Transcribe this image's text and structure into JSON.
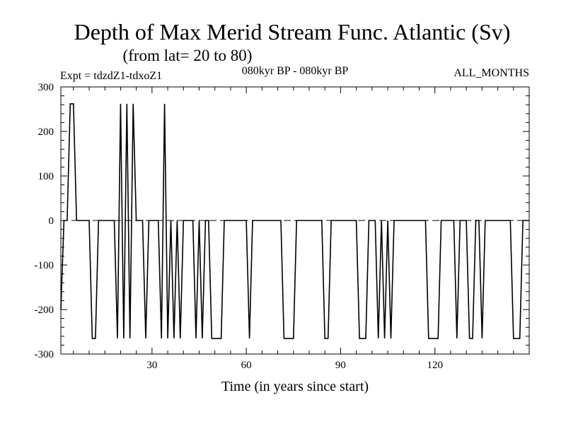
{
  "chart_data": {
    "type": "line",
    "title": "Depth of Max Merid Stream Func. Atlantic (Sv)",
    "subtitle": "(from lat= 20 to 80)",
    "expt_label": "Expt = tdzdZ1-tdxoZ1",
    "period_label": "080kyr BP - 080kyr BP",
    "months_label": "ALL_MONTHS",
    "xlabel": "Time (in years since start)",
    "ylabel": "",
    "xlim": [
      1,
      150
    ],
    "ylim": [
      -300,
      300
    ],
    "xticks": [
      30,
      60,
      90,
      120
    ],
    "yticks": [
      -300,
      -200,
      -100,
      0,
      100,
      200,
      300
    ],
    "zero_line": "dashed",
    "series": [
      {
        "name": "",
        "x": [
          1,
          2,
          3,
          4,
          5,
          6,
          7,
          8,
          9,
          10,
          11,
          12,
          13,
          14,
          15,
          16,
          17,
          18,
          19,
          20,
          21,
          22,
          23,
          24,
          25,
          26,
          27,
          28,
          29,
          30,
          31,
          32,
          33,
          34,
          35,
          36,
          37,
          38,
          39,
          40,
          41,
          42,
          43,
          44,
          45,
          46,
          47,
          48,
          49,
          50,
          51,
          52,
          53,
          54,
          55,
          56,
          57,
          58,
          59,
          60,
          61,
          62,
          63,
          64,
          65,
          66,
          67,
          68,
          69,
          70,
          71,
          72,
          73,
          74,
          75,
          76,
          77,
          78,
          79,
          80,
          81,
          82,
          83,
          84,
          85,
          86,
          87,
          88,
          89,
          90,
          91,
          92,
          93,
          94,
          95,
          96,
          97,
          98,
          99,
          100,
          101,
          102,
          103,
          104,
          105,
          106,
          107,
          108,
          109,
          110,
          111,
          112,
          113,
          114,
          115,
          116,
          117,
          118,
          119,
          120,
          121,
          122,
          123,
          124,
          125,
          126,
          127,
          128,
          129,
          130,
          131,
          132,
          133,
          134,
          135,
          136,
          137,
          138,
          139,
          140,
          141,
          142,
          143,
          144,
          145,
          146,
          147,
          148,
          149,
          150
        ],
        "values": [
          -200,
          0,
          0,
          262,
          262,
          0,
          0,
          0,
          0,
          0,
          -265,
          -265,
          0,
          0,
          0,
          0,
          0,
          0,
          -265,
          262,
          -265,
          262,
          -265,
          262,
          0,
          0,
          0,
          -265,
          0,
          0,
          0,
          0,
          -265,
          262,
          -265,
          0,
          -265,
          0,
          -265,
          0,
          0,
          0,
          0,
          -265,
          0,
          -265,
          0,
          0,
          -265,
          -265,
          -265,
          -265,
          0,
          0,
          0,
          0,
          0,
          0,
          0,
          0,
          -265,
          0,
          0,
          0,
          0,
          0,
          0,
          0,
          0,
          0,
          0,
          -265,
          -265,
          -265,
          -265,
          0,
          0,
          0,
          0,
          0,
          0,
          0,
          0,
          0,
          -265,
          -265,
          0,
          0,
          0,
          0,
          0,
          0,
          0,
          0,
          0,
          -265,
          -265,
          -265,
          0,
          0,
          0,
          -265,
          0,
          -265,
          0,
          -265,
          0,
          0,
          0,
          0,
          0,
          0,
          0,
          0,
          0,
          0,
          0,
          -265,
          -265,
          -265,
          -265,
          0,
          0,
          0,
          0,
          0,
          -265,
          0,
          0,
          0,
          -265,
          -265,
          0,
          0,
          -265,
          0,
          0,
          0,
          0,
          0,
          0,
          0,
          0,
          0,
          -265,
          -265,
          -265,
          0,
          0,
          0
        ]
      }
    ]
  }
}
